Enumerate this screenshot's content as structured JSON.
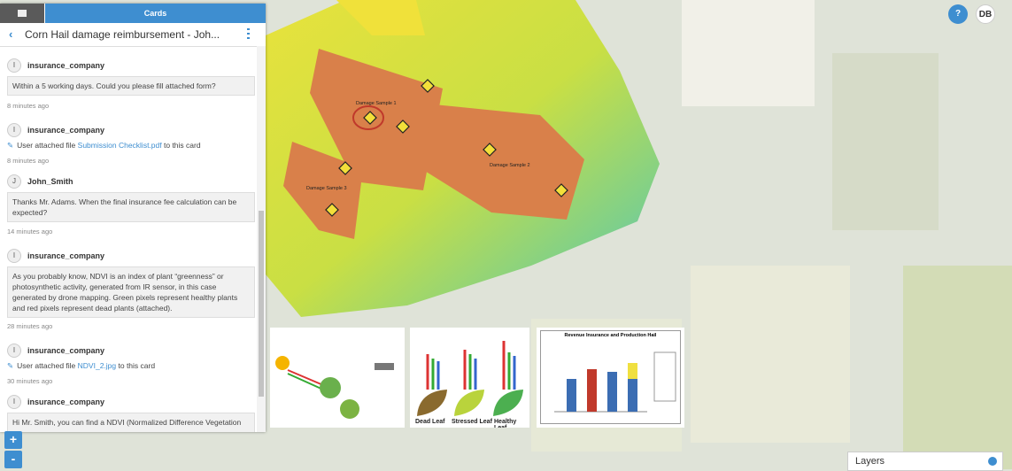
{
  "tabs": {
    "cards": "Cards"
  },
  "header": {
    "title": "Corn Hail damage reimbursement - Joh..."
  },
  "messages": [
    {
      "avatar": "I",
      "author": "insurance_company",
      "text": "Within a 5 working days. Could you please fill attached form?",
      "time": "8 minutes ago"
    },
    {
      "avatar": "I",
      "author": "insurance_company",
      "attachment": {
        "prefix": "User attached file",
        "file": "Submission Checklist.pdf",
        "suffix": "to this card"
      },
      "time": "8 minutes ago"
    },
    {
      "avatar": "J",
      "author": "John_Smith",
      "text": "Thanks Mr. Adams. When the final insurance fee calculation can be expected?",
      "time": "14 minutes ago"
    },
    {
      "avatar": "I",
      "author": "insurance_company",
      "text": "As you probably know, NDVI is an index of plant “greenness” or photosynthetic activity, generated from IR sensor, in this case generated by drone mapping. Green pixels represent healthy plants and red pixels represent dead plants (attached).",
      "time": "28 minutes ago"
    },
    {
      "avatar": "I",
      "author": "insurance_company",
      "attachment": {
        "prefix": "User attached file",
        "file": "NDVI_2.jpg",
        "suffix": "to this card"
      },
      "time": "30 minutes ago"
    },
    {
      "avatar": "I",
      "author": "insurance_company",
      "text": "Hi Mr. Smith, you can find a NDVI (Normalized Difference Vegetation"
    }
  ],
  "user_initials": "DB",
  "map_labels": [
    "Damage Sample 1",
    "Damage Sample 2",
    "Damage Sample 3"
  ],
  "thumbnails": {
    "leaves": [
      "Dead Leaf",
      "Stressed Leaf",
      "Healthy Leaf"
    ],
    "chart_title": "Revenue Insurance and Production Hail"
  },
  "zoom": {
    "in": "+",
    "out": "-"
  },
  "layers": "Layers"
}
